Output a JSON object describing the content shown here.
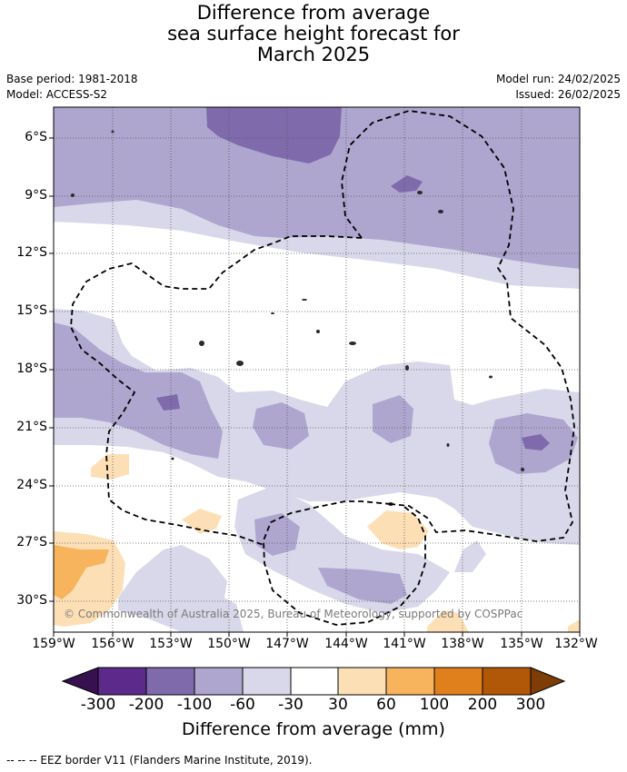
{
  "title_lines": [
    "Difference from average",
    "sea surface height forecast for",
    "March 2025"
  ],
  "meta": {
    "base_period": "Base period: 1981-2018",
    "model": "Model: ACCESS-S2",
    "model_run": "Model run: 24/02/2025",
    "issued": "Issued: 26/02/2025"
  },
  "copyright": "© Commonwealth of Australia 2025, Bureau of Meteorology, supported by COSPPac",
  "lat_ticks": [
    "6°S",
    "9°S",
    "12°S",
    "15°S",
    "18°S",
    "21°S",
    "24°S",
    "27°S",
    "30°S"
  ],
  "lon_ticks": [
    "159°W",
    "156°W",
    "153°W",
    "150°W",
    "147°W",
    "144°W",
    "141°W",
    "138°W",
    "135°W",
    "132°W"
  ],
  "colorbar": {
    "title": "Difference from average (mm)",
    "labels": [
      "-300",
      "-200",
      "-100",
      "-60",
      "-30",
      "30",
      "60",
      "100",
      "200",
      "300"
    ],
    "colors": [
      "#37104f",
      "#5b2a8a",
      "#7f6aab",
      "#aea6cf",
      "#d8d8ea",
      "#ffffff",
      "#fddfb6",
      "#f8b35d",
      "#e0801d",
      "#b05708",
      "#7e3d06"
    ]
  },
  "footnote": "-- -- -- EEZ border V11 (Flanders Marine Institute, 2019)."
}
